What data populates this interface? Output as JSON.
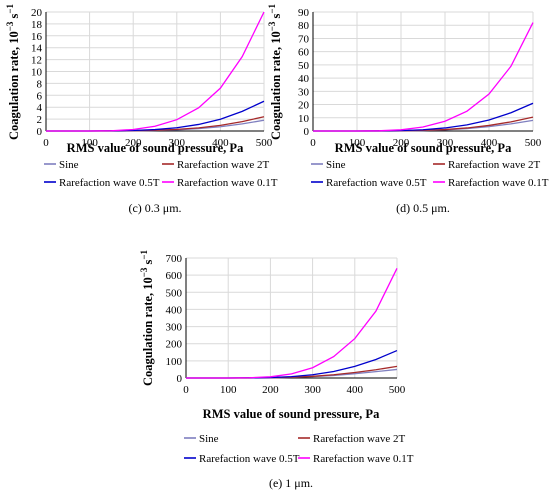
{
  "chart_data": [
    {
      "type": "line",
      "caption": "(c) 0.3 μm.",
      "xlabel": "RMS value of sound pressure, Pa",
      "ylabel_main": "Coagulation rate, 10",
      "ylabel_exp": "−3",
      "ylabel_unit": "s",
      "ylabel_unit_exp": "−1",
      "xlim": [
        0,
        500
      ],
      "ylim": [
        0,
        20
      ],
      "xticks": [
        0,
        100,
        200,
        300,
        400,
        500
      ],
      "yticks": [
        0,
        2,
        4,
        6,
        8,
        10,
        12,
        14,
        16,
        18,
        20
      ],
      "grid": true,
      "legend_position": "bottom",
      "x": [
        0,
        50,
        100,
        150,
        200,
        250,
        300,
        350,
        400,
        450,
        500
      ],
      "series": [
        {
          "name": "Sine",
          "color": "#7f7fbf",
          "values": [
            0,
            0,
            0,
            0.01,
            0.03,
            0.09,
            0.2,
            0.4,
            0.72,
            1.2,
            1.8
          ]
        },
        {
          "name": "Rarefaction wave 2T",
          "color": "#a52a2a",
          "values": [
            0,
            0,
            0,
            0.01,
            0.04,
            0.12,
            0.27,
            0.53,
            0.95,
            1.58,
            2.4
          ]
        },
        {
          "name": "Rarefaction wave 0.5T",
          "color": "#0000cc",
          "values": [
            0,
            0,
            0,
            0.02,
            0.08,
            0.24,
            0.55,
            1.1,
            1.98,
            3.3,
            5.0
          ]
        },
        {
          "name": "Rarefaction wave 0.1T",
          "color": "#ff00ff",
          "values": [
            0,
            0,
            0,
            0.04,
            0.25,
            0.8,
            1.9,
            3.9,
            7.2,
            12.5,
            20
          ]
        }
      ]
    },
    {
      "type": "line",
      "caption": "(d) 0.5 μm.",
      "xlabel": "RMS value of sound pressure, Pa",
      "ylabel_main": "Coagulation rate, 10",
      "ylabel_exp": "−3",
      "ylabel_unit": "s",
      "ylabel_unit_exp": "−1",
      "xlim": [
        0,
        500
      ],
      "ylim": [
        0,
        90
      ],
      "xticks": [
        0,
        100,
        200,
        300,
        400,
        500
      ],
      "yticks": [
        0,
        10,
        20,
        30,
        40,
        50,
        60,
        70,
        80,
        90
      ],
      "grid": true,
      "legend_position": "bottom",
      "x": [
        0,
        50,
        100,
        150,
        200,
        250,
        300,
        350,
        400,
        450,
        500
      ],
      "series": [
        {
          "name": "Sine",
          "color": "#7f7fbf",
          "values": [
            0,
            0,
            0,
            0.02,
            0.1,
            0.35,
            0.85,
            1.8,
            3.3,
            5.4,
            8.0
          ]
        },
        {
          "name": "Rarefaction wave 2T",
          "color": "#a52a2a",
          "values": [
            0,
            0,
            0,
            0.03,
            0.13,
            0.45,
            1.1,
            2.3,
            4.2,
            6.9,
            10.5
          ]
        },
        {
          "name": "Rarefaction wave 0.5T",
          "color": "#0000cc",
          "values": [
            0,
            0,
            0,
            0.05,
            0.28,
            0.95,
            2.3,
            4.6,
            8.3,
            13.8,
            21
          ]
        },
        {
          "name": "Rarefaction wave 0.1T",
          "color": "#ff00ff",
          "values": [
            0,
            0,
            0,
            0.15,
            0.9,
            3.0,
            7.4,
            15,
            28,
            49,
            82
          ]
        }
      ]
    },
    {
      "type": "line",
      "caption": "(e) 1 μm.",
      "xlabel": "RMS value of sound pressure, Pa",
      "ylabel_main": "Coagulation rate, 10",
      "ylabel_exp": "−3",
      "ylabel_unit": "s",
      "ylabel_unit_exp": "−1",
      "xlim": [
        0,
        500
      ],
      "ylim": [
        0,
        700
      ],
      "xticks": [
        0,
        100,
        200,
        300,
        400,
        500
      ],
      "yticks": [
        0,
        100,
        200,
        300,
        400,
        500,
        600,
        700
      ],
      "grid": true,
      "legend_position": "bottom",
      "x": [
        0,
        50,
        100,
        150,
        200,
        250,
        300,
        350,
        400,
        450,
        500
      ],
      "series": [
        {
          "name": "Sine",
          "color": "#7f7fbf",
          "values": [
            0,
            0,
            0,
            0.3,
            1.2,
            3.5,
            8,
            15,
            25,
            37,
            50
          ]
        },
        {
          "name": "Rarefaction wave 2T",
          "color": "#a52a2a",
          "values": [
            0,
            0,
            0,
            0.4,
            1.6,
            4.5,
            10,
            19,
            32,
            48,
            68
          ]
        },
        {
          "name": "Rarefaction wave 0.5T",
          "color": "#0000cc",
          "values": [
            0,
            0,
            0,
            0.6,
            2.6,
            8,
            19,
            38,
            68,
            108,
            160
          ]
        },
        {
          "name": "Rarefaction wave 0.1T",
          "color": "#ff00ff",
          "values": [
            0,
            0,
            0,
            1.5,
            7,
            24,
            60,
            125,
            230,
            390,
            640
          ]
        }
      ]
    }
  ]
}
